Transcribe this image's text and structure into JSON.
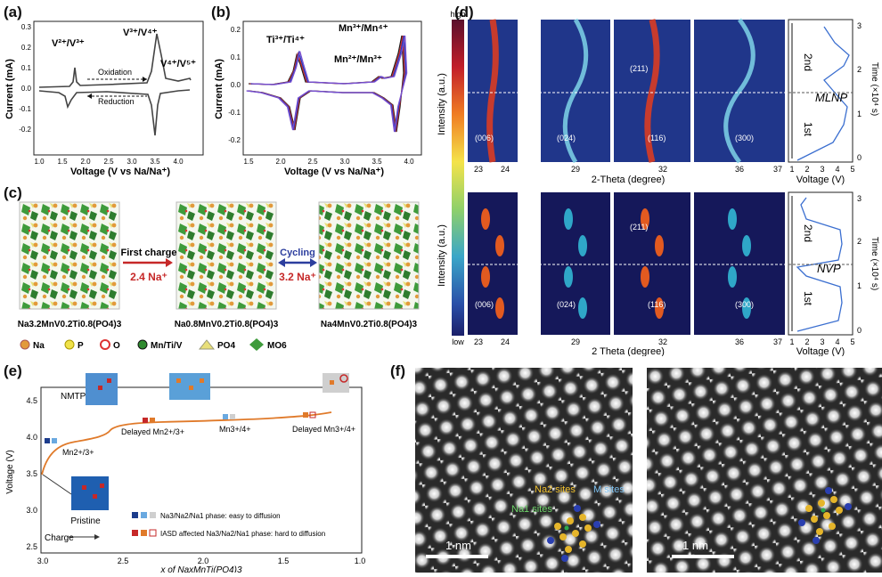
{
  "panel_labels": {
    "a": "(a)",
    "b": "(b)",
    "c": "(c)",
    "d": "(d)",
    "e": "(e)",
    "f": "(f)"
  },
  "panel_a": {
    "ylabel": "Current (mA)",
    "xlabel": "Voltage (V vs Na/Na⁺)",
    "xticks": [
      "1.0",
      "1.5",
      "2.0",
      "2.5",
      "3.0",
      "3.5",
      "4.0"
    ],
    "yticks": [
      "0.3",
      "0.2",
      "0.1",
      "0.0",
      "-0.1",
      "-0.2"
    ],
    "ann_v23": "V²⁺/V³⁺",
    "ann_v34": "V³⁺/V⁴⁺",
    "ann_v45": "V⁴⁺/V⁵⁺",
    "oxidation": "Oxidation",
    "reduction": "Reduction"
  },
  "panel_b": {
    "ylabel": "Current (mA)",
    "xlabel": "Voltage (V vs Na/Na⁺)",
    "xticks": [
      "1.5",
      "2.0",
      "2.5",
      "3.0",
      "3.5",
      "4.0"
    ],
    "yticks": [
      "0.2",
      "0.1",
      "0.0",
      "-0.1",
      "-0.2"
    ],
    "ann_ti": "Ti³⁺/Ti⁴⁺",
    "ann_mn34": "Mn³⁺/Mn⁴⁺",
    "ann_mn23": "Mn²⁺/Mn³⁺",
    "colors": [
      "#1f1f1f",
      "#d62728",
      "#1f3fbf",
      "#7a4fd0"
    ]
  },
  "panel_c": {
    "formula_left": "Na3.2MnV0.2Ti0.8(PO4)3",
    "formula_mid": "Na0.8MnV0.2Ti0.8(PO4)3",
    "formula_right": "Na4MnV0.2Ti0.8(PO4)3",
    "first_charge": "First charge",
    "first_charge_value": "2.4 Na⁺",
    "cycling": "Cycling",
    "cycling_value": "3.2 Na⁺",
    "legend": [
      "Na",
      "P",
      "O",
      "Mn/Ti/V",
      "PO4",
      "MO6"
    ]
  },
  "panel_d": {
    "colorbar_high": "high",
    "colorbar_low": "low",
    "colorbar_label": "Intensity (a.u.)",
    "top_xlabel": "2-Theta (degree)",
    "bottom_xlabel": "2 Theta (degree)",
    "xticks": [
      [
        "23",
        "24"
      ],
      [
        "29"
      ],
      [
        "32"
      ],
      [
        "36",
        "37"
      ]
    ],
    "reflections": [
      "(006)",
      "(024)",
      "(116)",
      "(300)"
    ],
    "refl_211": "(211)",
    "voltage_label": "Voltage (V)",
    "voltage_ticks": [
      "1",
      "2",
      "3",
      "4",
      "5"
    ],
    "time_label": "Time (×10⁴ s)",
    "time_ticks": [
      "0",
      "1",
      "2",
      "3"
    ],
    "second": "2nd",
    "first": "1st",
    "top_material": "MLNP",
    "bottom_material": "NVP"
  },
  "panel_e": {
    "ylabel": "Voltage (V)",
    "xlabel": "x of NaxMnTi(PO4)3",
    "yticks": [
      "4.5",
      "4.0",
      "3.5",
      "3.0",
      "2.5"
    ],
    "xticks": [
      "3.0",
      "2.5",
      "2.0",
      "1.5",
      "1.0"
    ],
    "ann_nmtp": "NMTP",
    "ann_mn23": "Mn2+/3+",
    "ann_delayed_mn23": "Delayed Mn2+/3+",
    "ann_mn34": "Mn3+/4+",
    "ann_delayed_mn34": "Delayed Mn3+/4+",
    "pristine": "Pristine",
    "charge": "Charge",
    "legend1": "Na3/Na2/Na1 phase: easy to diffusion",
    "legend2": "IASD affected Na3/Na2/Na1 phase: hard to diffusion"
  },
  "panel_f": {
    "scale_left": "1 nm",
    "scale_right": "1 nm",
    "na2_sites": "Na2 sites",
    "na1_sites": "Na1 sites",
    "m_sites": "M sites"
  }
}
